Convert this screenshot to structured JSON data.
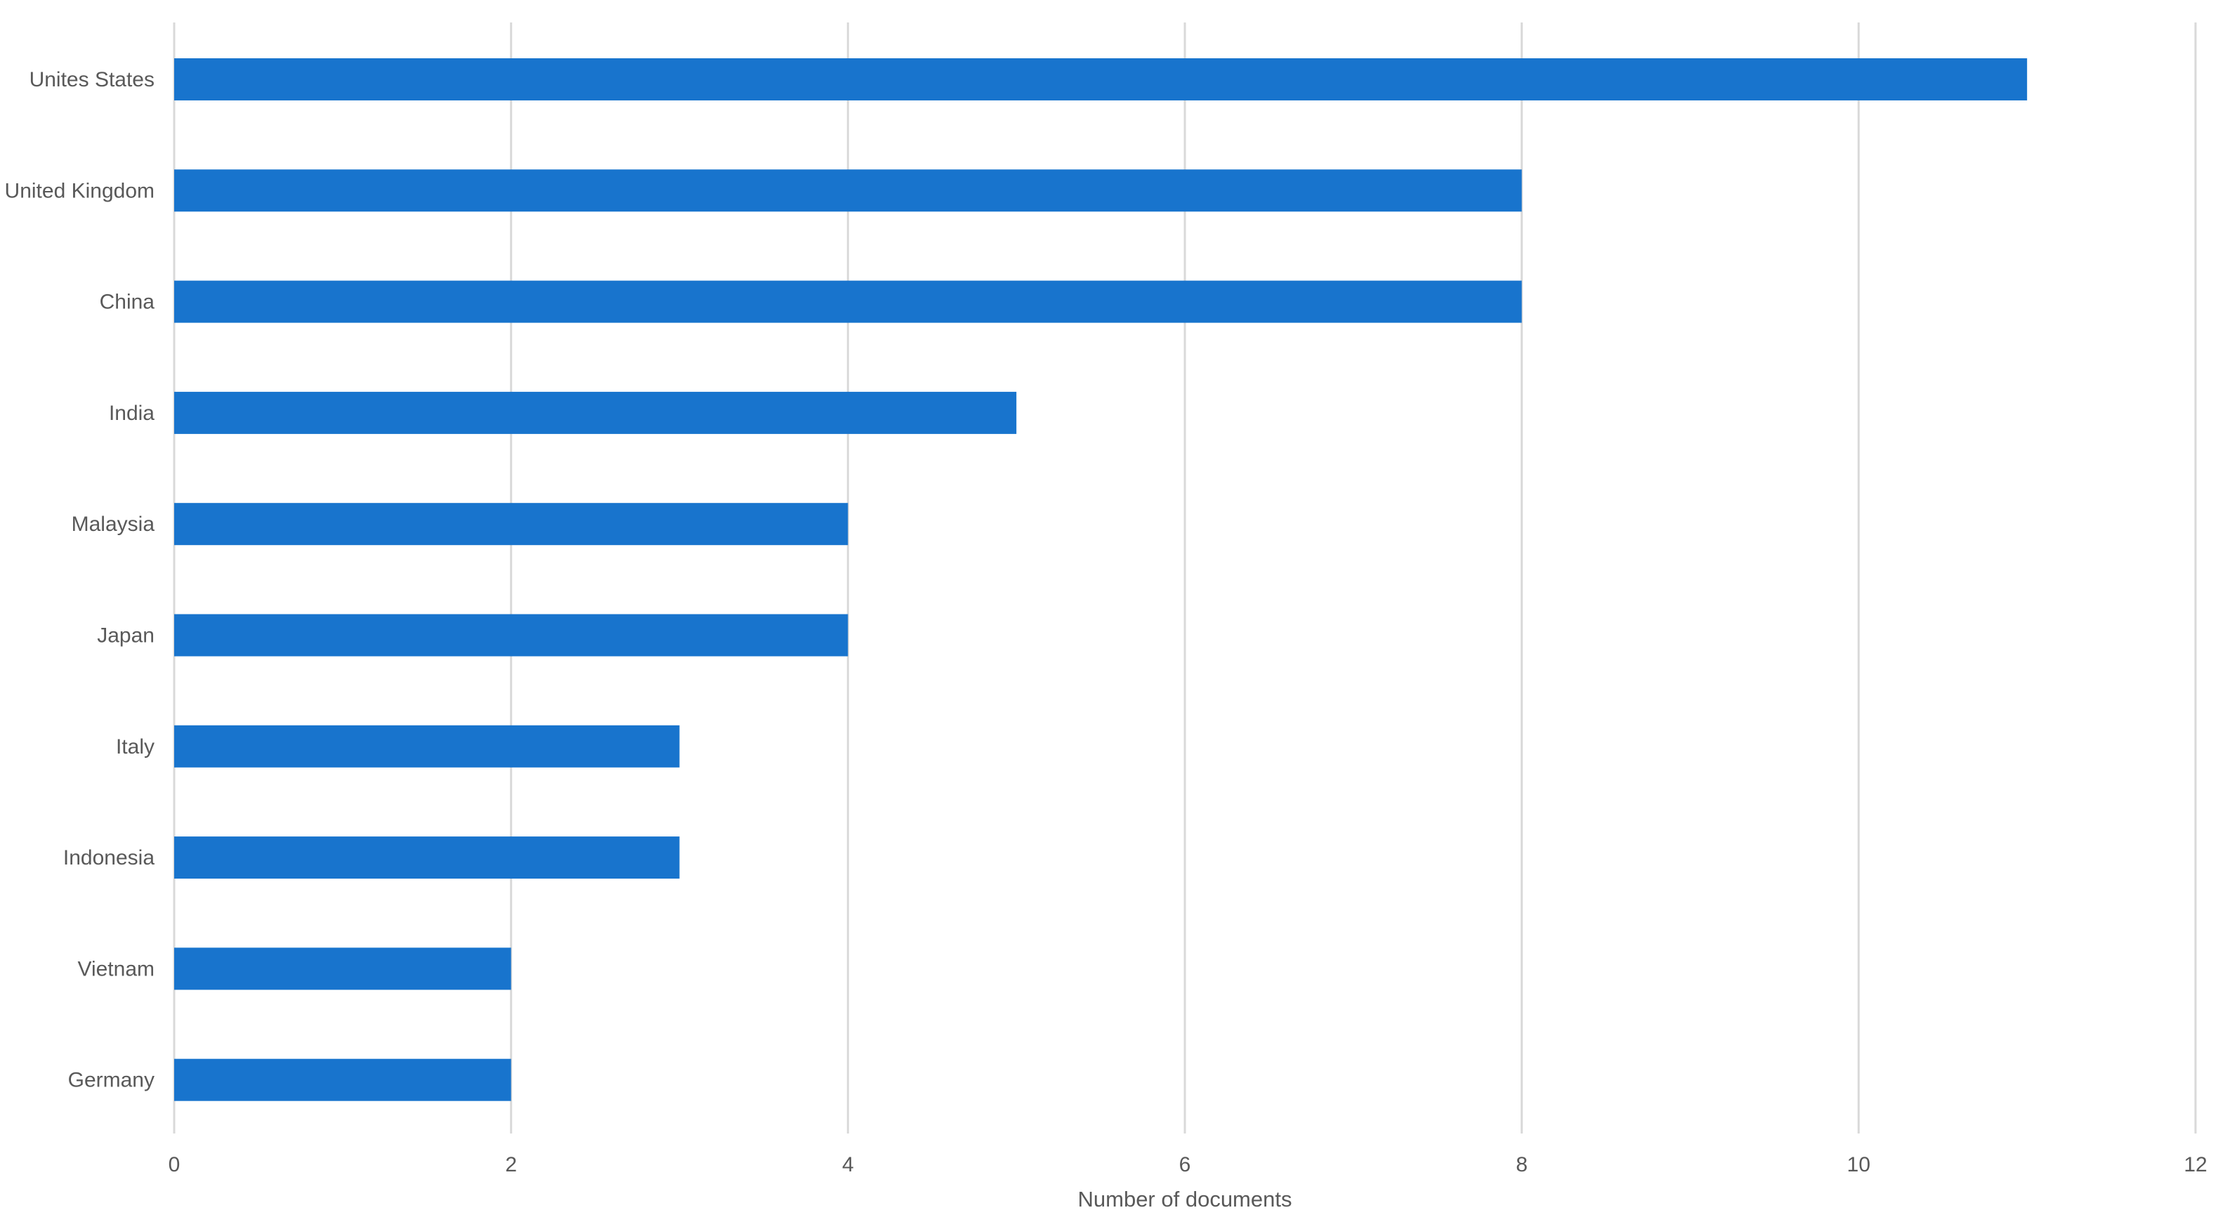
{
  "chart_data": {
    "type": "bar",
    "orientation": "horizontal",
    "title": "",
    "xlabel": "Number of documents",
    "ylabel": "",
    "categories": [
      "Unites States",
      "United Kingdom",
      "China",
      "India",
      "Malaysia",
      "Japan",
      "Italy",
      "Indonesia",
      "Vietnam",
      "Germany"
    ],
    "values": [
      11,
      8,
      8,
      5,
      4,
      4,
      3,
      3,
      2,
      2
    ],
    "xlim": [
      0,
      12
    ],
    "xticks": [
      "0",
      "2",
      "4",
      "6",
      "8",
      "10",
      "12"
    ],
    "grid": "vertical",
    "legend": "none",
    "bar_color": "#1874CD"
  }
}
